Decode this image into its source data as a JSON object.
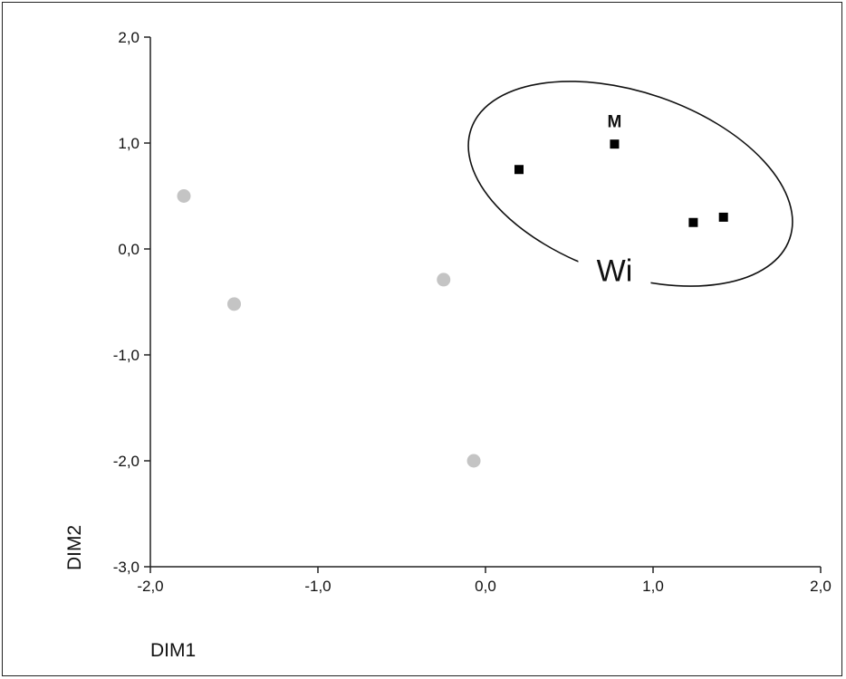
{
  "chart_data": {
    "type": "scatter",
    "title": "",
    "xlabel": "DIM1",
    "ylabel": "DIM2",
    "xlim": [
      -2.0,
      2.0
    ],
    "ylim": [
      -3.0,
      2.0
    ],
    "grid": false,
    "x_ticks": [
      "-2,0",
      "-1,0",
      "0,0",
      "1,0",
      "2,0"
    ],
    "y_ticks": [
      "2,0",
      "1,0",
      "0,0",
      "-1,0",
      "-2,0",
      "-3,0"
    ],
    "x_tick_values": [
      -2.0,
      -1.0,
      0.0,
      1.0,
      2.0
    ],
    "y_tick_values": [
      2.0,
      1.0,
      0.0,
      -1.0,
      -2.0,
      -3.0
    ],
    "series": [
      {
        "marker": "square",
        "color": "#000000",
        "points": [
          {
            "x": 0.2,
            "y": 0.75
          },
          {
            "x": 0.77,
            "y": 0.99
          },
          {
            "x": 1.24,
            "y": 0.25
          },
          {
            "x": 1.42,
            "y": 0.3
          }
        ]
      },
      {
        "marker": "circle",
        "color": "#c4c4c4",
        "points": [
          {
            "x": -1.8,
            "y": 0.5
          },
          {
            "x": -1.5,
            "y": -0.52
          },
          {
            "x": -0.25,
            "y": -0.29
          },
          {
            "x": -0.07,
            "y": -2.0
          }
        ]
      }
    ],
    "annotations": [
      {
        "text": "M",
        "x": 0.77,
        "y": 1.2
      },
      {
        "text": "Wi",
        "x": 0.77,
        "y": -0.2
      }
    ],
    "ellipse": {
      "label": "Wi",
      "center": [
        0.8,
        0.55
      ],
      "note": "group outline enclosing the square markers"
    }
  }
}
